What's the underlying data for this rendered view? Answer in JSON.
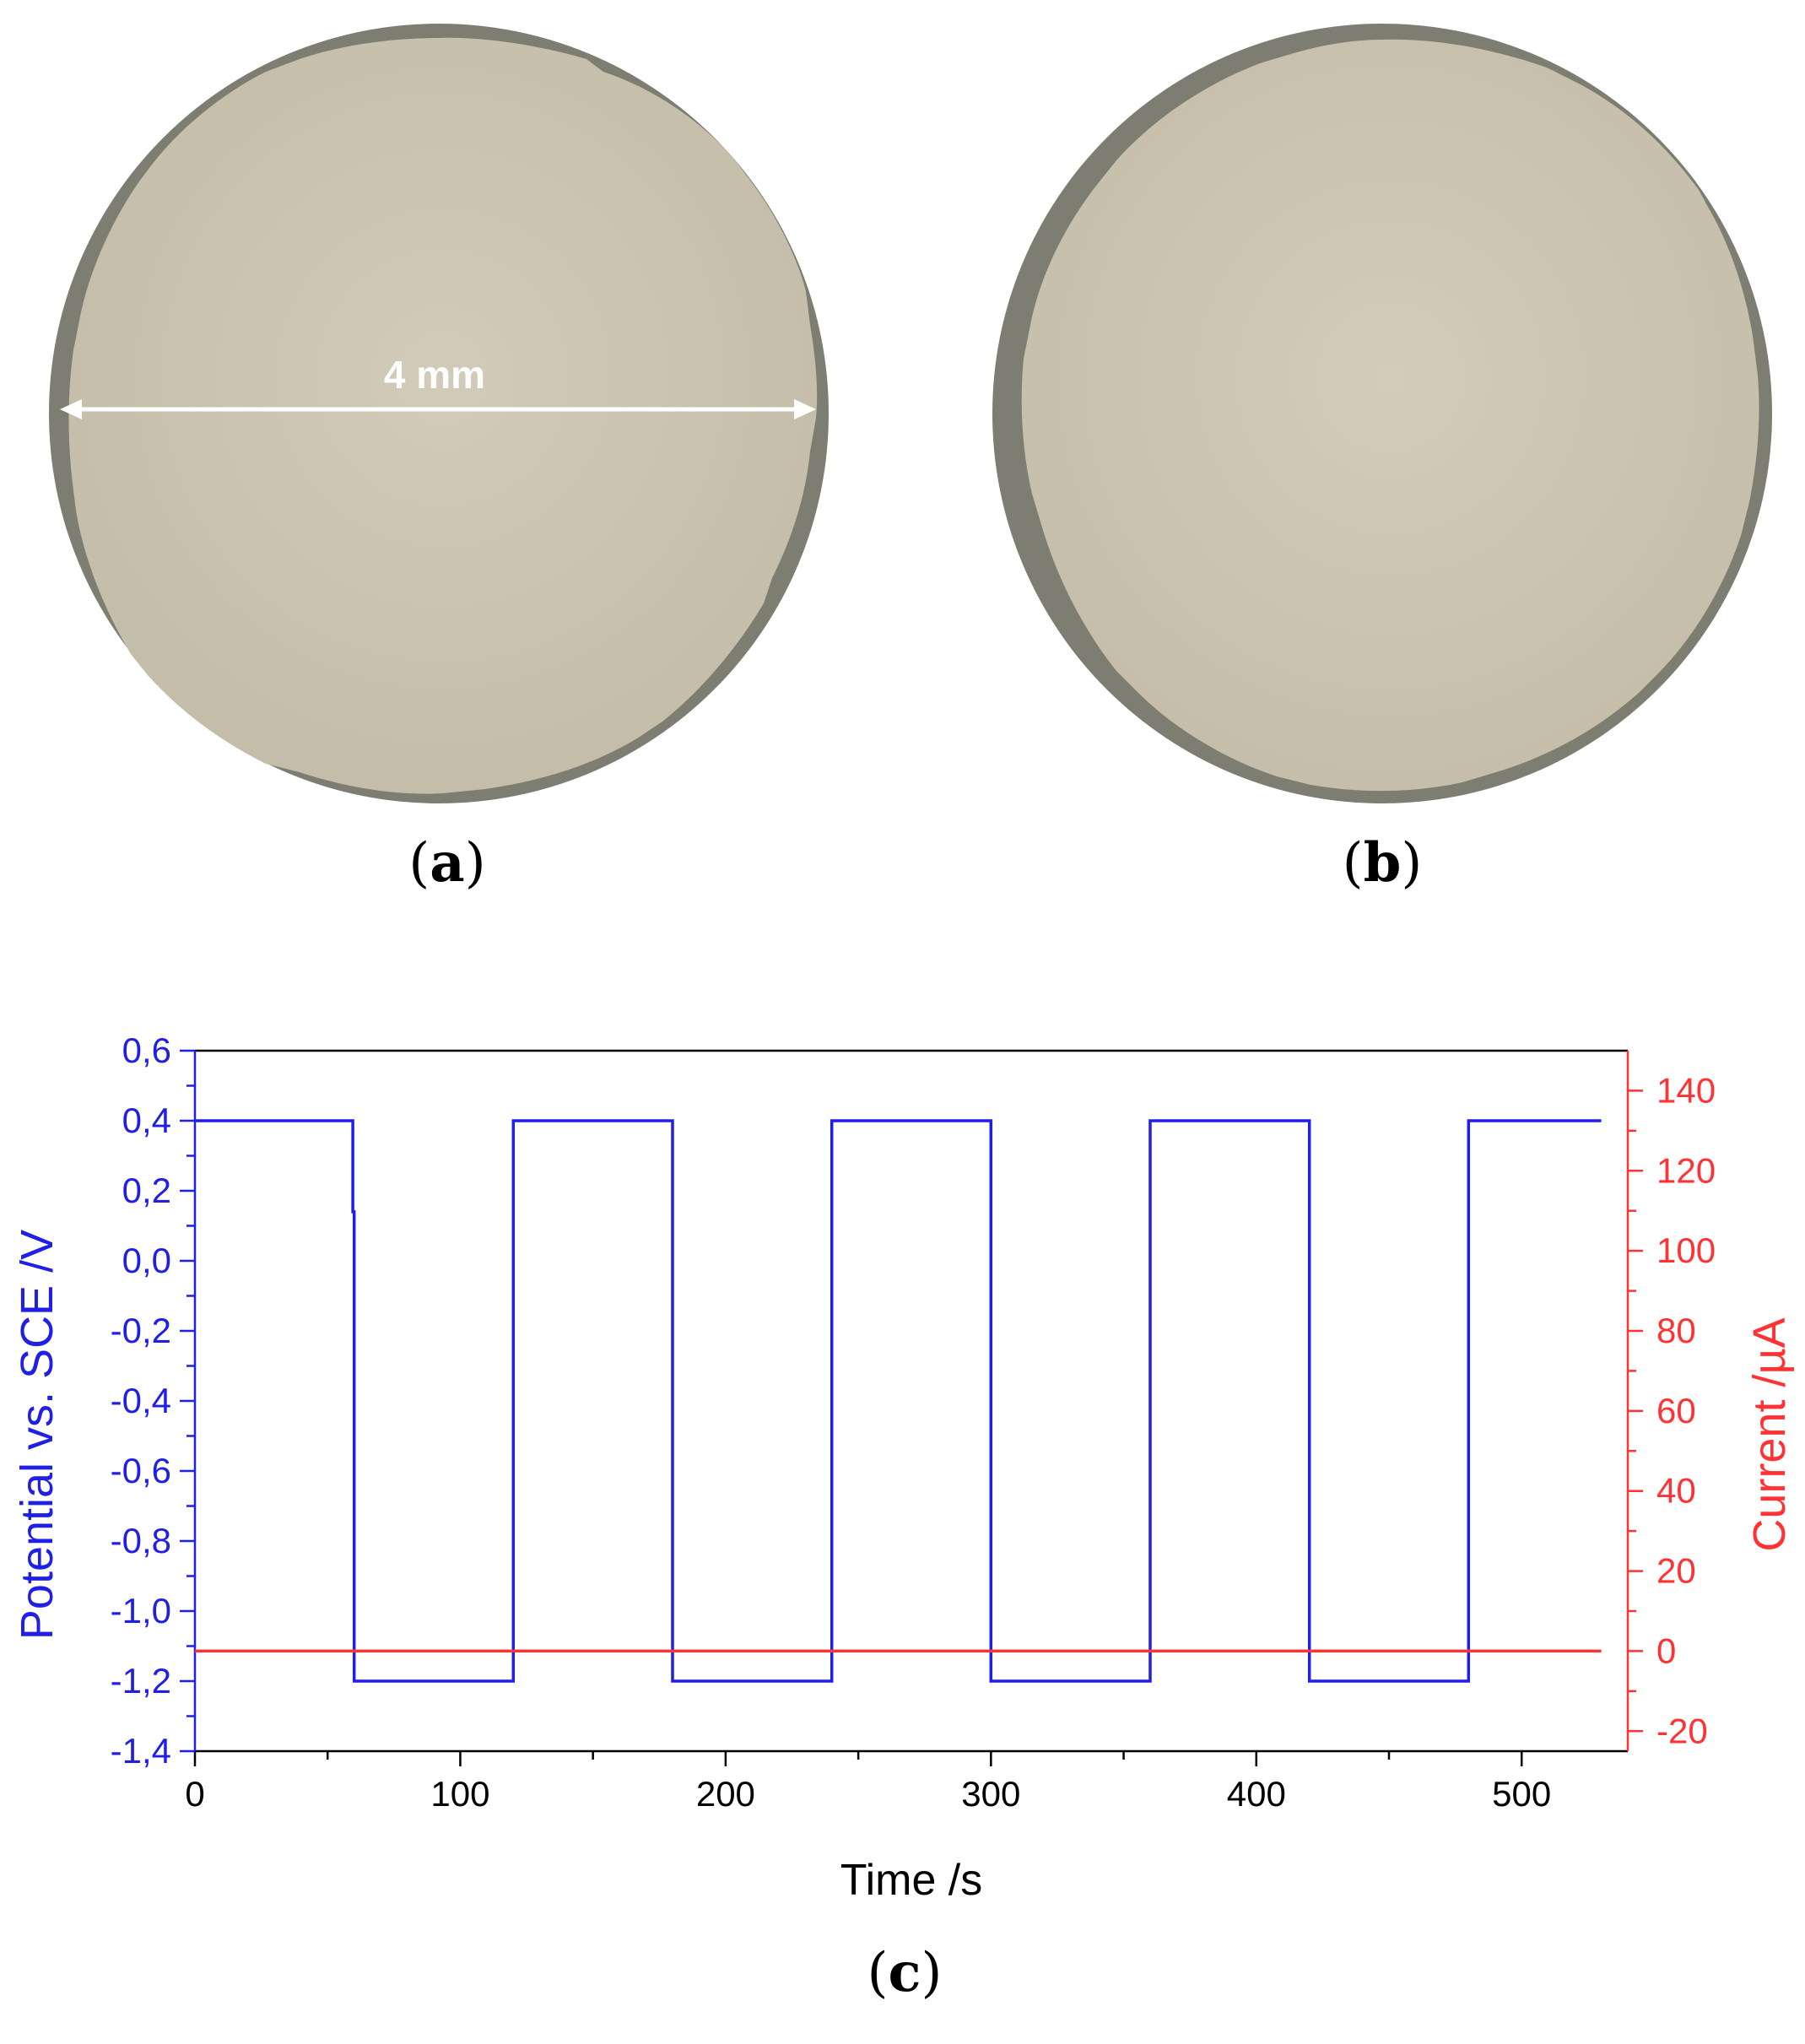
{
  "panels": {
    "a": {
      "label": "a",
      "scale_label": "4 mm"
    },
    "b": {
      "label": "b"
    },
    "c": {
      "label": "c"
    }
  },
  "colors": {
    "potential": "#1f1fe6",
    "current": "#ff3333",
    "sample_fill": "#cdc6b4",
    "sample_rim": "#7d7d72"
  },
  "chart_data": {
    "type": "line",
    "xlabel": "Time /s",
    "ylabel": "Potential vs. SCE /V",
    "y2label": "Current /µA",
    "xlim": [
      0,
      540
    ],
    "ylim": [
      -1.4,
      0.6
    ],
    "y2lim": [
      -25,
      150
    ],
    "xticks": [
      "0",
      "100",
      "200",
      "300",
      "400",
      "500"
    ],
    "yticks": [
      "0,6",
      "0,4",
      "0,2",
      "0,0",
      "-0,2",
      "-0,4",
      "-0,6",
      "-0,8",
      "-1,0",
      "-1,2",
      "-1,4"
    ],
    "y2ticks": [
      "140",
      "120",
      "100",
      "80",
      "60",
      "40",
      "20",
      "0",
      "-20"
    ],
    "series": [
      {
        "axis": "left",
        "color": "#1f1fe6",
        "x": [
          0,
          59.5,
          59.5,
          60,
          60,
          120,
          120,
          180,
          180,
          240,
          240,
          300,
          300,
          360,
          360,
          420,
          420,
          480,
          480,
          530
        ],
        "y": [
          0.4,
          0.4,
          0.14,
          0.14,
          -1.2,
          -1.2,
          0.4,
          0.4,
          -1.2,
          -1.2,
          0.4,
          0.4,
          -1.2,
          -1.2,
          0.4,
          0.4,
          -1.2,
          -1.2,
          0.4,
          0.4
        ]
      },
      {
        "axis": "right",
        "color": "#ff3333",
        "x": [
          0,
          530
        ],
        "y": [
          0,
          0
        ]
      }
    ]
  }
}
